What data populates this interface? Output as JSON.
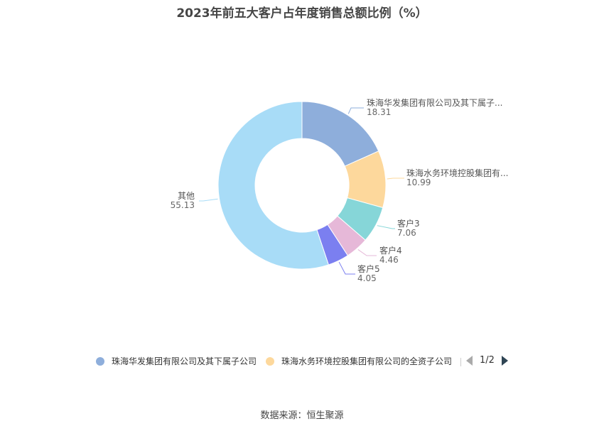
{
  "title": "2023年前五大客户占年度销售总额比例（%）",
  "chart_data": {
    "type": "pie",
    "variant": "donut",
    "slices": [
      {
        "name": "珠海华发集团有限公司及其下属子公司",
        "label": "珠海华发集团有限公司及其下属子...",
        "value": 18.31,
        "value_text": "18.31",
        "color": "#8eaedb"
      },
      {
        "name": "珠海水务环境控股集团有限公司的全资子公司",
        "label": "珠海水务环境控股集团有...",
        "value": 10.99,
        "value_text": "10.99",
        "color": "#fdd89c"
      },
      {
        "name": "客户3",
        "label": "客户3",
        "value": 7.06,
        "value_text": "7.06",
        "color": "#86d6d8"
      },
      {
        "name": "客户4",
        "label": "客户4",
        "value": 4.46,
        "value_text": "4.46",
        "color": "#e6b8d8"
      },
      {
        "name": "客户5",
        "label": "客户5",
        "value": 4.05,
        "value_text": "4.05",
        "color": "#7b7ff0"
      },
      {
        "name": "其他",
        "label": "其他",
        "value": 55.13,
        "value_text": "55.13",
        "color": "#a8dcf7"
      }
    ],
    "legend_position": "bottom"
  },
  "legend": {
    "items": [
      {
        "label": "珠海华发集团有限公司及其下属子公司",
        "color": "#8eaedb"
      },
      {
        "label": "珠海水务环境控股集团有限公司的全资子公司",
        "color": "#fdd89c"
      }
    ],
    "page": "1/2"
  },
  "source": "数据来源：恒生聚源"
}
